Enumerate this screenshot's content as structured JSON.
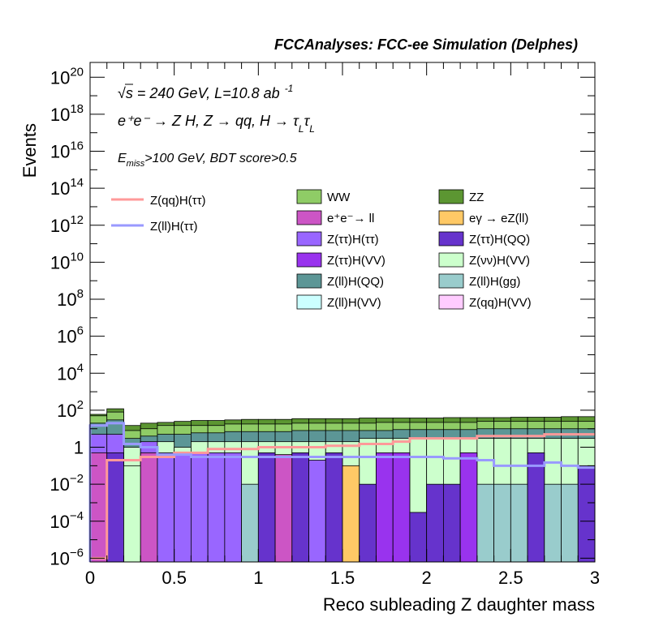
{
  "chart_data": {
    "type": "histogram",
    "title": "FCCAnalyses: FCC-ee Simulation (Delphes)",
    "annotations": {
      "line1": "√s = 240 GeV, L=10.8 ab",
      "line1_sup": "-1",
      "line2": "e⁺e⁻ → Z H, Z → qq, H → τ",
      "line2_sub": "L",
      "line3_main": "E",
      "line3_sub": "miss",
      "line3_rest": ">100 GeV, BDT score>0.5"
    },
    "xlabel": "Reco subleading Z daughter mass",
    "ylabel": "Events",
    "xlim": [
      0,
      3
    ],
    "ylog": true,
    "ylim_log10": [
      -6.2,
      20.8
    ],
    "x_ticks": [
      {
        "v": 0,
        "label": "0"
      },
      {
        "v": 0.5,
        "label": "0.5"
      },
      {
        "v": 1,
        "label": "1"
      },
      {
        "v": 1.5,
        "label": "1.5"
      },
      {
        "v": 2,
        "label": "2"
      },
      {
        "v": 2.5,
        "label": "2.5"
      },
      {
        "v": 3,
        "label": "3"
      }
    ],
    "y_ticks": [
      {
        "exp": -6,
        "base": "10",
        "sup": "−6"
      },
      {
        "exp": -4,
        "base": "10",
        "sup": "−4"
      },
      {
        "exp": -2,
        "base": "10",
        "sup": "−2"
      },
      {
        "exp": 0,
        "base": "1",
        "sup": ""
      },
      {
        "exp": 2,
        "base": "10",
        "sup": "2"
      },
      {
        "exp": 4,
        "base": "10",
        "sup": "4"
      },
      {
        "exp": 6,
        "base": "10",
        "sup": "6"
      },
      {
        "exp": 8,
        "base": "10",
        "sup": "8"
      },
      {
        "exp": 10,
        "base": "10",
        "sup": "10"
      },
      {
        "exp": 12,
        "base": "10",
        "sup": "12"
      },
      {
        "exp": 14,
        "base": "10",
        "sup": "14"
      },
      {
        "exp": 16,
        "base": "10",
        "sup": "16"
      },
      {
        "exp": 18,
        "base": "10",
        "sup": "18"
      },
      {
        "exp": 20,
        "base": "10",
        "sup": "20"
      }
    ],
    "colors": {
      "ww": "#8fcc66",
      "zz": "#5c9632",
      "ll": "#cc55c5",
      "egamma": "#ffc966",
      "tautau_tautau": "#9966ff",
      "tautau_qq": "#6633cc",
      "tautau_vv": "#9933ee",
      "nunu_vv": "#ccffcc",
      "ll_qq": "#5c9696",
      "ll_gg": "#99cccc",
      "ll_vv": "#ccffff",
      "qq_vv": "#ffccff",
      "sig_qq": "#ff9999",
      "sig_ll": "#9999ff"
    },
    "legend_signal": [
      {
        "label": "Z(qq)H(ττ)",
        "color": "#ff9999"
      },
      {
        "label": "Z(ll)H(ττ)",
        "color": "#9999ff"
      }
    ],
    "legend_background": [
      {
        "label": "WW",
        "color": "#8fcc66"
      },
      {
        "label": "ZZ",
        "color": "#5c9632"
      },
      {
        "label": "e⁺e⁻→ ll",
        "color": "#cc55c5"
      },
      {
        "label": "eγ → eZ(ll)",
        "color": "#ffc966"
      },
      {
        "label": "Z(ττ)H(ττ)",
        "color": "#9966ff"
      },
      {
        "label": "Z(ττ)H(QQ)",
        "color": "#6633cc"
      },
      {
        "label": "Z(ττ)H(VV)",
        "color": "#9933ee"
      },
      {
        "label": "Z(νν)H(VV)",
        "color": "#ccffcc"
      },
      {
        "label": "Z(ll)H(QQ)",
        "color": "#5c9696"
      },
      {
        "label": "Z(ll)H(gg)",
        "color": "#99cccc"
      },
      {
        "label": "Z(ll)H(VV)",
        "color": "#ccffff"
      },
      {
        "label": "Z(qq)H(VV)",
        "color": "#ffccff"
      }
    ],
    "bin_width": 0.1,
    "bottom_bins": [
      {
        "x0": 0.0,
        "y": 0.5,
        "c": "ll"
      },
      {
        "x0": 0.1,
        "y": 0.5,
        "c": "tautau_qq"
      },
      {
        "x0": 0.2,
        "y": 0.1,
        "c": "nunu_vv"
      },
      {
        "x0": 0.3,
        "y": 0.5,
        "c": "ll"
      },
      {
        "x0": 0.4,
        "y": 0.5,
        "c": "tautau_tautau"
      },
      {
        "x0": 0.5,
        "y": 0.5,
        "c": "tautau_tautau"
      },
      {
        "x0": 0.6,
        "y": 0.5,
        "c": "tautau_tautau"
      },
      {
        "x0": 0.7,
        "y": 0.5,
        "c": "tautau_tautau"
      },
      {
        "x0": 0.8,
        "y": 0.5,
        "c": "tautau_tautau"
      },
      {
        "x0": 0.9,
        "y": 0.01,
        "c": "ll_gg"
      },
      {
        "x0": 1.0,
        "y": 0.5,
        "c": "tautau_qq"
      },
      {
        "x0": 1.1,
        "y": 0.4,
        "c": "ll"
      },
      {
        "x0": 1.2,
        "y": 0.5,
        "c": "tautau_qq"
      },
      {
        "x0": 1.3,
        "y": 0.2,
        "c": "tautau_tautau"
      },
      {
        "x0": 1.4,
        "y": 0.5,
        "c": "tautau_qq"
      },
      {
        "x0": 1.5,
        "y": 0.1,
        "c": "egamma"
      },
      {
        "x0": 1.6,
        "y": 0.01,
        "c": "tautau_qq"
      },
      {
        "x0": 1.7,
        "y": 0.5,
        "c": "tautau_vv"
      },
      {
        "x0": 1.8,
        "y": 0.5,
        "c": "tautau_vv"
      },
      {
        "x0": 1.9,
        "y": 0.0003,
        "c": "tautau_qq"
      },
      {
        "x0": 2.0,
        "y": 0.01,
        "c": "tautau_qq"
      },
      {
        "x0": 2.1,
        "y": 0.01,
        "c": "tautau_qq"
      },
      {
        "x0": 2.2,
        "y": 0.5,
        "c": "tautau_vv"
      },
      {
        "x0": 2.3,
        "y": 0.01,
        "c": "ll_gg"
      },
      {
        "x0": 2.4,
        "y": 0.01,
        "c": "ll_gg"
      },
      {
        "x0": 2.5,
        "y": 0.01,
        "c": "ll_gg"
      },
      {
        "x0": 2.6,
        "y": 0.5,
        "c": "tautau_qq"
      },
      {
        "x0": 2.7,
        "y": 0.01,
        "c": "ll_gg"
      },
      {
        "x0": 2.8,
        "y": 0.01,
        "c": "ll_gg"
      },
      {
        "x0": 2.9,
        "y": 0.1,
        "c": "tautau_qq"
      }
    ],
    "middle_bins": [
      {
        "x0": 0.0,
        "y": 5,
        "c": "tautau_tautau"
      },
      {
        "x0": 0.1,
        "y": 5,
        "c": "tautau_tautau"
      },
      {
        "x0": 0.2,
        "y": 1,
        "c": "nunu_vv"
      },
      {
        "x0": 0.3,
        "y": 2,
        "c": "tautau_tautau"
      },
      {
        "x0": 0.4,
        "y": 2,
        "c": "nunu_vv"
      },
      {
        "x0": 0.5,
        "y": 1,
        "c": "nunu_vv"
      },
      {
        "x0": 0.6,
        "y": 2,
        "c": "nunu_vv"
      },
      {
        "x0": 0.7,
        "y": 2,
        "c": "nunu_vv"
      },
      {
        "x0": 0.8,
        "y": 2,
        "c": "nunu_vv"
      },
      {
        "x0": 0.9,
        "y": 2,
        "c": "nunu_vv"
      },
      {
        "x0": 1.0,
        "y": 2,
        "c": "nunu_vv"
      },
      {
        "x0": 1.1,
        "y": 2,
        "c": "nunu_vv"
      },
      {
        "x0": 1.2,
        "y": 2,
        "c": "nunu_vv"
      },
      {
        "x0": 1.3,
        "y": 2,
        "c": "nunu_vv"
      },
      {
        "x0": 1.4,
        "y": 2,
        "c": "nunu_vv"
      },
      {
        "x0": 1.5,
        "y": 2,
        "c": "nunu_vv"
      },
      {
        "x0": 1.6,
        "y": 3,
        "c": "nunu_vv"
      },
      {
        "x0": 1.7,
        "y": 3,
        "c": "nunu_vv"
      },
      {
        "x0": 1.8,
        "y": 3,
        "c": "nunu_vv"
      },
      {
        "x0": 1.9,
        "y": 3,
        "c": "nunu_vv"
      },
      {
        "x0": 2.0,
        "y": 3,
        "c": "nunu_vv"
      },
      {
        "x0": 2.1,
        "y": 3,
        "c": "nunu_vv"
      },
      {
        "x0": 2.2,
        "y": 3,
        "c": "nunu_vv"
      },
      {
        "x0": 2.3,
        "y": 3,
        "c": "nunu_vv"
      },
      {
        "x0": 2.4,
        "y": 3,
        "c": "nunu_vv"
      },
      {
        "x0": 2.5,
        "y": 3,
        "c": "nunu_vv"
      },
      {
        "x0": 2.6,
        "y": 3,
        "c": "nunu_vv"
      },
      {
        "x0": 2.7,
        "y": 3,
        "c": "nunu_vv"
      },
      {
        "x0": 2.8,
        "y": 3,
        "c": "nunu_vv"
      },
      {
        "x0": 2.9,
        "y": 3,
        "c": "nunu_vv"
      }
    ],
    "upper_bins": [
      {
        "x0": 0.0,
        "y": 20,
        "c": "ll_qq"
      },
      {
        "x0": 0.1,
        "y": 30,
        "c": "ll_qq"
      },
      {
        "x0": 0.2,
        "y": 3,
        "c": "ll_qq"
      },
      {
        "x0": 0.3,
        "y": 4,
        "c": "ll_qq"
      },
      {
        "x0": 0.4,
        "y": 5,
        "c": "ll_qq"
      },
      {
        "x0": 0.5,
        "y": 5,
        "c": "ll_qq"
      },
      {
        "x0": 0.6,
        "y": 6,
        "c": "ll_qq"
      },
      {
        "x0": 0.7,
        "y": 6,
        "c": "ll_qq"
      },
      {
        "x0": 0.8,
        "y": 7,
        "c": "ll_qq"
      },
      {
        "x0": 0.9,
        "y": 7,
        "c": "ll_qq"
      },
      {
        "x0": 1.0,
        "y": 7,
        "c": "ll_qq"
      },
      {
        "x0": 1.1,
        "y": 7,
        "c": "ll_qq"
      },
      {
        "x0": 1.2,
        "y": 8,
        "c": "ll_qq"
      },
      {
        "x0": 1.3,
        "y": 8,
        "c": "ll_qq"
      },
      {
        "x0": 1.4,
        "y": 8,
        "c": "ll_qq"
      },
      {
        "x0": 1.5,
        "y": 8,
        "c": "ll_qq"
      },
      {
        "x0": 1.6,
        "y": 8,
        "c": "ll_qq"
      },
      {
        "x0": 1.7,
        "y": 8,
        "c": "ll_qq"
      },
      {
        "x0": 1.8,
        "y": 9,
        "c": "ll_qq"
      },
      {
        "x0": 1.9,
        "y": 9,
        "c": "ll_qq"
      },
      {
        "x0": 2.0,
        "y": 9,
        "c": "ll_qq"
      },
      {
        "x0": 2.1,
        "y": 9,
        "c": "ll_qq"
      },
      {
        "x0": 2.2,
        "y": 9,
        "c": "ll_qq"
      },
      {
        "x0": 2.3,
        "y": 10,
        "c": "ll_qq"
      },
      {
        "x0": 2.4,
        "y": 10,
        "c": "ll_qq"
      },
      {
        "x0": 2.5,
        "y": 10,
        "c": "ll_qq"
      },
      {
        "x0": 2.6,
        "y": 10,
        "c": "ll_qq"
      },
      {
        "x0": 2.7,
        "y": 10,
        "c": "ll_qq"
      },
      {
        "x0": 2.8,
        "y": 10,
        "c": "ll_qq"
      },
      {
        "x0": 2.9,
        "y": 10,
        "c": "ll_qq"
      }
    ],
    "ww_bins": [
      {
        "x0": 0.0,
        "y": 50
      },
      {
        "x0": 0.1,
        "y": 80
      },
      {
        "x0": 0.2,
        "y": 8
      },
      {
        "x0": 0.3,
        "y": 10
      },
      {
        "x0": 0.4,
        "y": 15
      },
      {
        "x0": 0.5,
        "y": 15
      },
      {
        "x0": 0.6,
        "y": 15
      },
      {
        "x0": 0.7,
        "y": 15
      },
      {
        "x0": 0.8,
        "y": 18
      },
      {
        "x0": 0.9,
        "y": 18
      },
      {
        "x0": 1.0,
        "y": 18
      },
      {
        "x0": 1.1,
        "y": 18
      },
      {
        "x0": 1.2,
        "y": 20
      },
      {
        "x0": 1.3,
        "y": 20
      },
      {
        "x0": 1.4,
        "y": 20
      },
      {
        "x0": 1.5,
        "y": 20
      },
      {
        "x0": 1.6,
        "y": 20
      },
      {
        "x0": 1.7,
        "y": 22
      },
      {
        "x0": 1.8,
        "y": 22
      },
      {
        "x0": 1.9,
        "y": 22
      },
      {
        "x0": 2.0,
        "y": 22
      },
      {
        "x0": 2.1,
        "y": 22
      },
      {
        "x0": 2.2,
        "y": 22
      },
      {
        "x0": 2.3,
        "y": 25
      },
      {
        "x0": 2.4,
        "y": 25
      },
      {
        "x0": 2.5,
        "y": 25
      },
      {
        "x0": 2.6,
        "y": 25
      },
      {
        "x0": 2.7,
        "y": 25
      },
      {
        "x0": 2.8,
        "y": 25
      },
      {
        "x0": 2.9,
        "y": 25
      }
    ],
    "total_bins": [
      {
        "x0": 0.0,
        "y": 60
      },
      {
        "x0": 0.1,
        "y": 120
      },
      {
        "x0": 0.2,
        "y": 15
      },
      {
        "x0": 0.3,
        "y": 20
      },
      {
        "x0": 0.4,
        "y": 22
      },
      {
        "x0": 0.5,
        "y": 25
      },
      {
        "x0": 0.6,
        "y": 28
      },
      {
        "x0": 0.7,
        "y": 28
      },
      {
        "x0": 0.8,
        "y": 30
      },
      {
        "x0": 0.9,
        "y": 32
      },
      {
        "x0": 1.0,
        "y": 32
      },
      {
        "x0": 1.1,
        "y": 32
      },
      {
        "x0": 1.2,
        "y": 35
      },
      {
        "x0": 1.3,
        "y": 35
      },
      {
        "x0": 1.4,
        "y": 35
      },
      {
        "x0": 1.5,
        "y": 35
      },
      {
        "x0": 1.6,
        "y": 38
      },
      {
        "x0": 1.7,
        "y": 38
      },
      {
        "x0": 1.8,
        "y": 38
      },
      {
        "x0": 1.9,
        "y": 38
      },
      {
        "x0": 2.0,
        "y": 38
      },
      {
        "x0": 2.1,
        "y": 40
      },
      {
        "x0": 2.2,
        "y": 40
      },
      {
        "x0": 2.3,
        "y": 40
      },
      {
        "x0": 2.4,
        "y": 40
      },
      {
        "x0": 2.5,
        "y": 42
      },
      {
        "x0": 2.6,
        "y": 42
      },
      {
        "x0": 2.7,
        "y": 42
      },
      {
        "x0": 2.8,
        "y": 45
      },
      {
        "x0": 2.9,
        "y": 45
      }
    ],
    "series": [
      {
        "name": "Z(qq)H(ττ)",
        "color": "#ff9999",
        "values": [
          1e-06,
          0.2,
          0.2,
          0.3,
          0.3,
          0.5,
          0.5,
          0.8,
          0.8,
          0.8,
          1.0,
          1.0,
          1.0,
          1.0,
          1.2,
          1.2,
          1.5,
          1.5,
          2,
          3,
          3,
          3,
          3,
          4,
          4,
          4,
          4,
          5,
          5,
          5
        ]
      },
      {
        "name": "Z(ll)H(ττ)",
        "color": "#9999ff",
        "values": [
          15,
          20,
          1.5,
          1.0,
          0.4,
          0.4,
          0.3,
          0.3,
          0.3,
          0.3,
          0.3,
          0.3,
          0.3,
          0.3,
          0.3,
          0.3,
          0.3,
          0.3,
          0.3,
          0.3,
          0.3,
          0.25,
          0.25,
          0.2,
          0.1,
          0.1,
          0.1,
          0.15,
          0.1,
          0.08
        ]
      }
    ]
  }
}
